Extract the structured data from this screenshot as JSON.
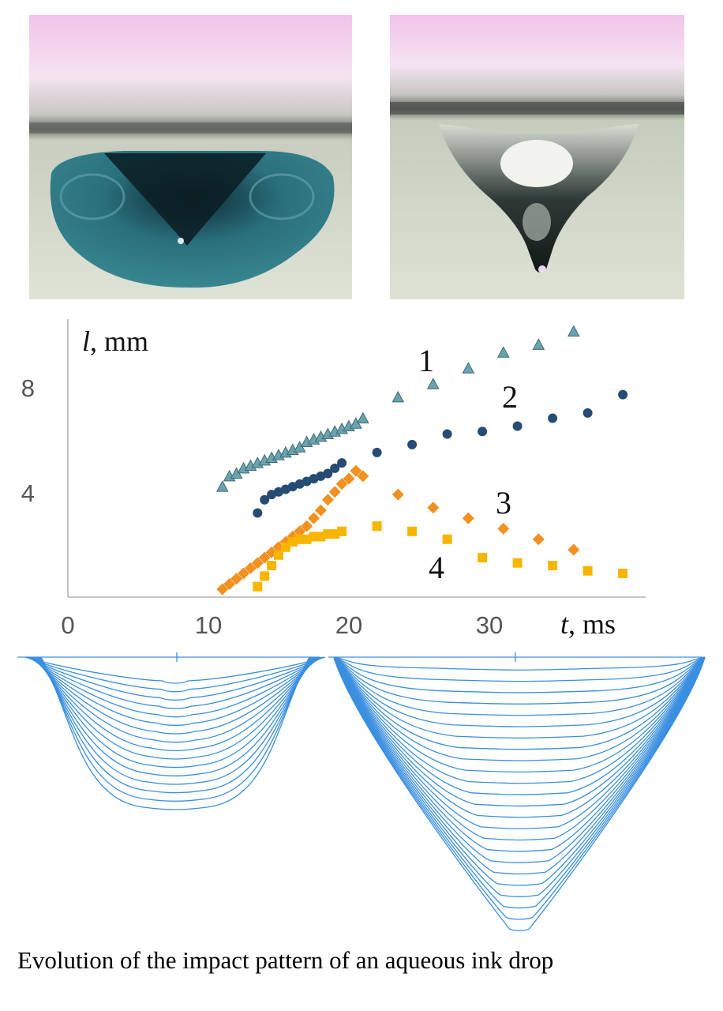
{
  "caption": "Evolution of the impact pattern of an aqueous ink drop",
  "photos": [
    {
      "name": "ink-drop-cavity-photo",
      "liquid_color": "#2e7f8a"
    },
    {
      "name": "water-drop-cavity-photo",
      "liquid_color": "#b7c9bb"
    }
  ],
  "chart_data": {
    "type": "scatter",
    "xlabel_symbol": "t",
    "xlabel_unit": ", ms",
    "ylabel_symbol": "l",
    "ylabel_unit": ", mm",
    "xlim": [
      0,
      40
    ],
    "ylim": [
      0,
      10.5
    ],
    "xticks": [
      "0",
      "10",
      "20",
      "30"
    ],
    "yticks": [
      "4",
      "8"
    ],
    "series": [
      {
        "name": "1",
        "color": "#6aa2ae",
        "marker": "triangle",
        "x": [
          11.0,
          11.5,
          12.0,
          12.5,
          13.0,
          13.5,
          14.0,
          14.5,
          15.0,
          15.5,
          16.0,
          16.5,
          17.0,
          17.5,
          18.0,
          18.5,
          19.0,
          19.5,
          20.0,
          20.5,
          21.0,
          23.5,
          26.0,
          28.5,
          31.0,
          33.5,
          36.0
        ],
        "y": [
          4.2,
          4.6,
          4.7,
          4.9,
          5.0,
          5.1,
          5.2,
          5.3,
          5.4,
          5.5,
          5.6,
          5.7,
          5.9,
          6.0,
          6.1,
          6.2,
          6.3,
          6.4,
          6.5,
          6.6,
          6.8,
          7.6,
          8.1,
          8.7,
          9.3,
          9.6,
          10.1
        ]
      },
      {
        "name": "2",
        "color": "#264c73",
        "marker": "circle",
        "x": [
          13.5,
          14.0,
          14.5,
          15.0,
          15.5,
          16.0,
          16.5,
          17.0,
          17.5,
          18.0,
          18.5,
          19.0,
          19.5,
          22.0,
          24.5,
          27.0,
          29.5,
          32.0,
          34.5,
          37.0,
          39.5
        ],
        "y": [
          3.2,
          3.7,
          3.9,
          4.0,
          4.1,
          4.2,
          4.3,
          4.4,
          4.5,
          4.6,
          4.7,
          4.9,
          5.1,
          5.5,
          5.8,
          6.2,
          6.3,
          6.5,
          6.8,
          7.0,
          7.7
        ]
      },
      {
        "name": "3",
        "color": "#f29020",
        "marker": "diamond",
        "x": [
          11.0,
          11.5,
          12.0,
          12.5,
          13.0,
          13.5,
          14.0,
          14.5,
          15.0,
          15.5,
          16.0,
          16.5,
          17.0,
          17.5,
          18.0,
          18.5,
          19.0,
          19.5,
          20.0,
          20.5,
          21.0,
          23.5,
          26.0,
          28.5,
          31.0,
          33.5,
          36.0
        ],
        "y": [
          0.3,
          0.5,
          0.7,
          0.9,
          1.1,
          1.3,
          1.5,
          1.7,
          1.9,
          2.1,
          2.3,
          2.5,
          2.7,
          3.0,
          3.3,
          3.7,
          4.0,
          4.3,
          4.5,
          4.8,
          4.6,
          3.9,
          3.4,
          3.0,
          2.6,
          2.2,
          1.8
        ]
      },
      {
        "name": "4",
        "color": "#f7b500",
        "marker": "square",
        "x": [
          13.5,
          14.0,
          14.5,
          15.0,
          15.5,
          16.0,
          16.5,
          17.0,
          17.5,
          18.0,
          18.5,
          19.0,
          19.5,
          22.0,
          24.5,
          27.0,
          29.5,
          32.0,
          34.5,
          37.0,
          39.5
        ],
        "y": [
          0.4,
          0.8,
          1.2,
          1.6,
          1.9,
          2.1,
          2.2,
          2.2,
          2.3,
          2.3,
          2.4,
          2.4,
          2.5,
          2.7,
          2.5,
          2.2,
          1.5,
          1.3,
          1.2,
          1.0,
          0.9
        ]
      }
    ]
  }
}
